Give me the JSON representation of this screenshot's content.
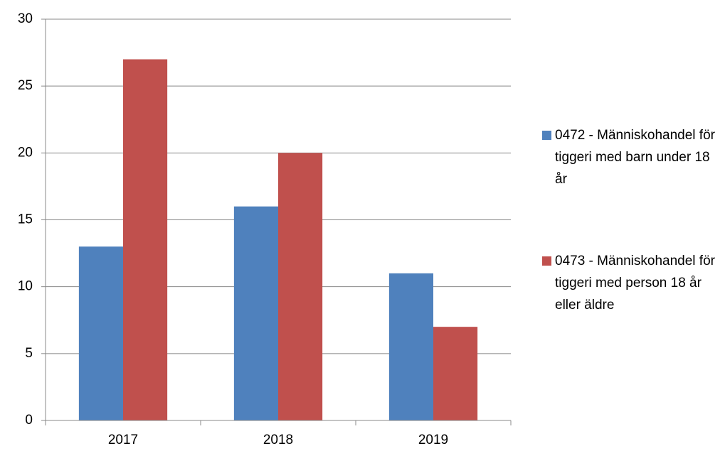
{
  "chart_data": {
    "type": "bar",
    "categories": [
      "2017",
      "2018",
      "2019"
    ],
    "series": [
      {
        "name": "0472 - Människohandel för tiggeri med barn under 18 år",
        "color": "#4f81bd",
        "values": [
          13,
          16,
          11
        ]
      },
      {
        "name": "0473 - Människohandel för tiggeri med person 18 år eller äldre",
        "color": "#c0504d",
        "values": [
          27,
          20,
          7
        ]
      }
    ],
    "ylim": [
      0,
      30
    ],
    "yticks": [
      0,
      5,
      10,
      15,
      20,
      25,
      30
    ],
    "grid": true,
    "legend": "right"
  }
}
